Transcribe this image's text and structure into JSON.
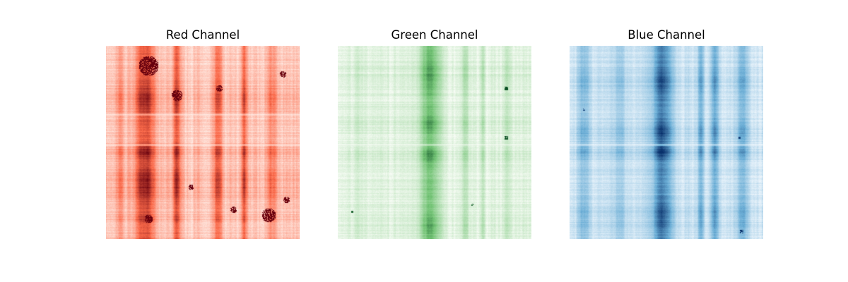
{
  "chart_data": [
    {
      "type": "heatmap",
      "title": "Red Channel",
      "colormap": "Reds",
      "colors": {
        "low": "#fff5f0",
        "mid": "#fb6a4a",
        "high": "#67000d"
      },
      "axes_visible": false,
      "grid": false
    },
    {
      "type": "heatmap",
      "title": "Green Channel",
      "colormap": "Greens",
      "colors": {
        "low": "#f7fcf5",
        "mid": "#74c476",
        "high": "#00441b"
      },
      "axes_visible": false,
      "grid": false
    },
    {
      "type": "heatmap",
      "title": "Blue Channel",
      "colormap": "Blues",
      "colors": {
        "low": "#f7fbff",
        "mid": "#6baed6",
        "high": "#08306b"
      },
      "axes_visible": false,
      "grid": false
    }
  ]
}
